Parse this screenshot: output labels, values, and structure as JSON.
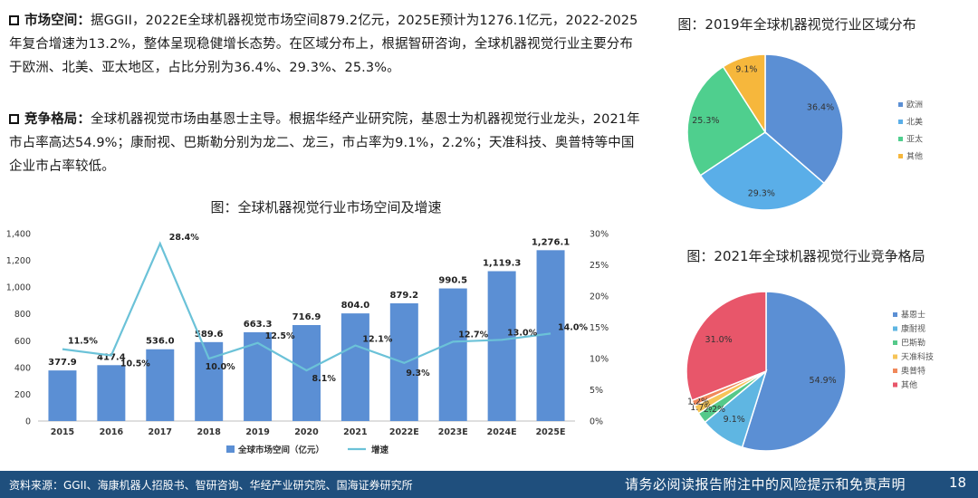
{
  "para1": {
    "head": "市场空间：",
    "body": "据GGII，2022E全球机器视觉市场空间879.2亿元，2025E预计为1276.1亿元，2022-2025年复合增速为13.2%，整体呈现稳健增长态势。在区域分布上，根据智研咨询，全球机器视觉行业主要分布于欧洲、北美、亚太地区，占比分别为36.4%、29.3%、25.3%。"
  },
  "para2": {
    "head": "竞争格局：",
    "body": "全球机器视觉市场由基恩士主导。根据华经产业研究院，基恩士为机器视觉行业龙头，2021年市占率高达54.9%；康耐视、巴斯勒分别为龙二、龙三，市占率为9.1%，2.2%；天准科技、奥普特等中国企业市占率较低。"
  },
  "chart_data": [
    {
      "type": "bar",
      "title": "图：全球机器视觉行业市场空间及增速",
      "categories": [
        "2015",
        "2016",
        "2017",
        "2018",
        "2019",
        "2020",
        "2021",
        "2022E",
        "2023E",
        "2024E",
        "2025E"
      ],
      "series": [
        {
          "name": "全球市场空间（亿元）",
          "kind": "bar",
          "axis": "left",
          "color": "#5b8fd4",
          "values": [
            377.9,
            417.4,
            536.0,
            589.6,
            663.3,
            716.9,
            804.0,
            879.2,
            990.5,
            1119.3,
            1276.1
          ],
          "labels": [
            "377.9",
            "417.4",
            "536.0",
            "589.6",
            "663.3",
            "716.9",
            "804.0",
            "879.2",
            "990.5",
            "1,119.3",
            "1,276.1"
          ]
        },
        {
          "name": "增速",
          "kind": "line",
          "axis": "right",
          "color": "#6bc2d8",
          "values": [
            11.5,
            10.5,
            28.4,
            10.0,
            12.5,
            8.1,
            12.1,
            9.3,
            12.7,
            13.0,
            14.0
          ],
          "labels": [
            "11.5%",
            "10.5%",
            "28.4%",
            "10.0%",
            "12.5%",
            "8.1%",
            "12.1%",
            "9.3%",
            "12.7%",
            "13.0%",
            "14.0%"
          ]
        }
      ],
      "ylim": [
        0,
        1400
      ],
      "yticks": [
        "0",
        "200",
        "400",
        "600",
        "800",
        "1,000",
        "1,200",
        "1,400"
      ],
      "y2lim": [
        0,
        30
      ],
      "y2ticks": [
        "0%",
        "5%",
        "10%",
        "15%",
        "20%",
        "25%",
        "30%"
      ],
      "legend": "bottom"
    },
    {
      "type": "pie",
      "title": "图：2019年全球机器视觉行业区域分布",
      "labels": [
        "欧洲",
        "北美",
        "亚太",
        "其他"
      ],
      "values": [
        36.4,
        29.3,
        25.3,
        9.1
      ],
      "value_labels": [
        "36.4%",
        "29.3%",
        "25.3%",
        "9.1%"
      ],
      "colors": [
        "#5b8fd4",
        "#5aaee8",
        "#4fcf8e",
        "#f6b73c"
      ],
      "legend": "right"
    },
    {
      "type": "pie",
      "title": "图：2021年全球机器视觉行业竞争格局",
      "labels": [
        "基恩士",
        "康耐视",
        "巴斯勒",
        "天准科技",
        "奥普特",
        "其他"
      ],
      "values": [
        54.9,
        9.1,
        2.2,
        1.7,
        1.2,
        31.0
      ],
      "value_labels": [
        "54.9%",
        "9.1%",
        "2.2%",
        "1.7%",
        "1.2%",
        "31.0%"
      ],
      "colors": [
        "#5b8fd4",
        "#5fb6e2",
        "#55c98a",
        "#f6c458",
        "#f0885a",
        "#e8566a"
      ],
      "legend": "right"
    }
  ],
  "footer": {
    "source": "资料来源：GGII、海康机器人招股书、智研咨询、华经产业研究院、国海证券研究所",
    "disclaimer": "请务必阅读报告附注中的风险提示和免责声明",
    "page": "18"
  }
}
